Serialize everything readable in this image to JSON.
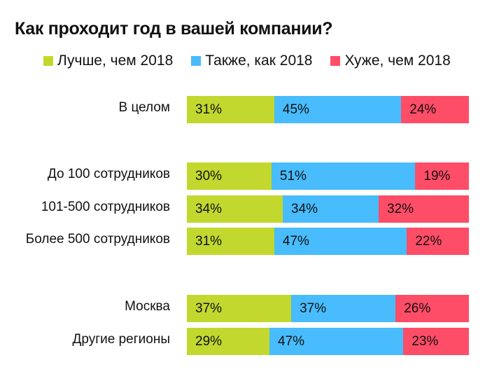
{
  "chart_data": {
    "type": "bar",
    "orientation": "horizontal",
    "stacked": true,
    "title": "Как проходит год в вашей компании?",
    "xlabel": "",
    "ylabel": "",
    "xlim": [
      0,
      100
    ],
    "legend_position": "top",
    "categories": [
      "В целом",
      "До 100 сотрудников",
      "101-500 сотрудников",
      "Более 500 сотрудников",
      "Москва",
      "Другие регионы"
    ],
    "series": [
      {
        "name": "Лучше, чем 2018",
        "color": "#c2d82e",
        "values": [
          31,
          30,
          34,
          31,
          37,
          29
        ],
        "labels": [
          "31%",
          "30%",
          "34%",
          "31%",
          "37%",
          "29%"
        ]
      },
      {
        "name": "Также, как 2018",
        "color": "#48bcfd",
        "values": [
          45,
          51,
          34,
          47,
          37,
          47
        ],
        "labels": [
          "45%",
          "51%",
          "34%",
          "47%",
          "37%",
          "47%"
        ]
      },
      {
        "name": "Хуже, чем 2018",
        "color": "#fe4d67",
        "values": [
          24,
          19,
          32,
          22,
          26,
          23
        ],
        "labels": [
          "24%",
          "19%",
          "32%",
          "22%",
          "26%",
          "23%"
        ]
      }
    ]
  }
}
